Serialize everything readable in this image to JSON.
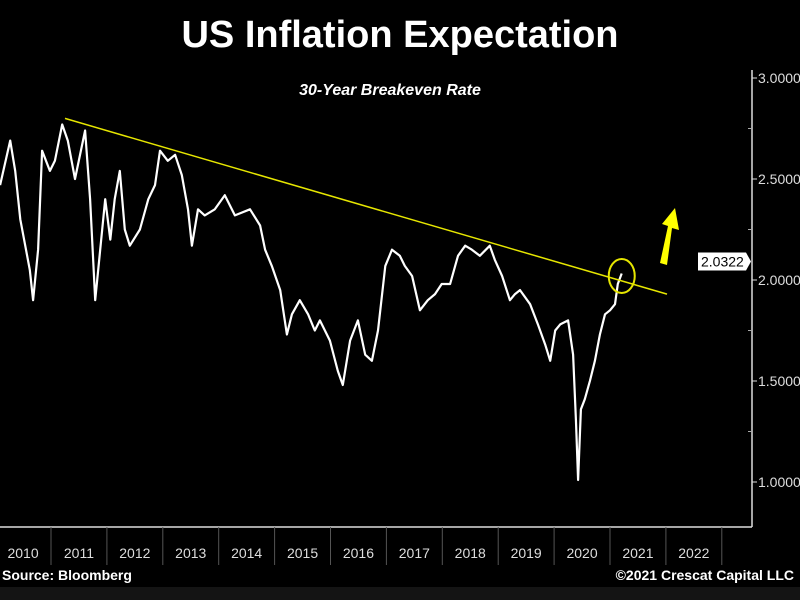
{
  "chart_data": {
    "type": "line",
    "title": "US Inflation Expectation",
    "subtitle": "30-Year Breakeven Rate",
    "x_unit": "year",
    "xlim": [
      2010.09,
      2022.6
    ],
    "ylim": [
      0.78,
      3.04
    ],
    "x_ticks": [
      "2010",
      "2011",
      "2012",
      "2013",
      "2014",
      "2015",
      "2016",
      "2017",
      "2018",
      "2019",
      "2020",
      "2021",
      "2022"
    ],
    "y_ticks": [
      "3.0000",
      "2.5000",
      "2.0000",
      "1.5000",
      "1.0000"
    ],
    "y_tick_values": [
      3.0,
      2.5,
      2.0,
      1.5,
      1.0
    ],
    "y_axis_position": "right",
    "grid": false,
    "last_value_label": "2.0322",
    "series": [
      {
        "color": "#ffffff",
        "x": [
          2010.09,
          2010.27,
          2010.36,
          2010.45,
          2010.62,
          2010.68,
          2010.77,
          2010.84,
          2010.98,
          2011.07,
          2011.2,
          2011.3,
          2011.43,
          2011.61,
          2011.7,
          2011.79,
          2011.88,
          2011.97,
          2012.06,
          2012.14,
          2012.23,
          2012.32,
          2012.41,
          2012.59,
          2012.74,
          2012.86,
          2012.95,
          2013.09,
          2013.22,
          2013.34,
          2013.45,
          2013.52,
          2013.63,
          2013.75,
          2013.93,
          2014.11,
          2014.29,
          2014.56,
          2014.74,
          2014.83,
          2014.95,
          2015.1,
          2015.22,
          2015.31,
          2015.45,
          2015.6,
          2015.72,
          2015.81,
          2015.99,
          2016.13,
          2016.22,
          2016.35,
          2016.49,
          2016.62,
          2016.74,
          2016.85,
          2016.98,
          2017.1,
          2017.24,
          2017.33,
          2017.46,
          2017.6,
          2017.74,
          2017.87,
          2017.99,
          2018.14,
          2018.28,
          2018.41,
          2018.53,
          2018.67,
          2018.85,
          2018.94,
          2019.07,
          2019.21,
          2019.3,
          2019.39,
          2019.57,
          2019.71,
          2019.84,
          2019.93,
          2020.02,
          2020.11,
          2020.25,
          2020.34,
          2020.39,
          2020.43,
          2020.48,
          2020.55,
          2020.64,
          2020.73,
          2020.82,
          2020.91,
          2021.0,
          2021.09,
          2021.14,
          2021.21
        ],
        "y": [
          2.47,
          2.69,
          2.54,
          2.3,
          2.05,
          1.9,
          2.15,
          2.64,
          2.54,
          2.59,
          2.77,
          2.69,
          2.5,
          2.74,
          2.4,
          1.9,
          2.15,
          2.4,
          2.2,
          2.4,
          2.54,
          2.25,
          2.17,
          2.25,
          2.4,
          2.47,
          2.64,
          2.59,
          2.62,
          2.52,
          2.35,
          2.17,
          2.35,
          2.32,
          2.35,
          2.42,
          2.32,
          2.35,
          2.27,
          2.15,
          2.07,
          1.95,
          1.73,
          1.83,
          1.9,
          1.83,
          1.75,
          1.8,
          1.7,
          1.55,
          1.48,
          1.7,
          1.8,
          1.63,
          1.6,
          1.75,
          2.07,
          2.15,
          2.12,
          2.07,
          2.02,
          1.85,
          1.9,
          1.93,
          1.98,
          1.98,
          2.12,
          2.17,
          2.15,
          2.12,
          2.17,
          2.1,
          2.02,
          1.9,
          1.93,
          1.95,
          1.88,
          1.78,
          1.68,
          1.6,
          1.75,
          1.78,
          1.8,
          1.63,
          1.31,
          1.01,
          1.36,
          1.41,
          1.5,
          1.6,
          1.73,
          1.83,
          1.85,
          1.88,
          1.98,
          2.0322
        ]
      }
    ],
    "annotations": {
      "trendline": {
        "color": "#e6e600",
        "from": [
          2011.25,
          2.8
        ],
        "to": [
          2022.02,
          1.93
        ]
      },
      "highlight_circle": {
        "color": "#e6e600",
        "at": [
          2021.21,
          2.03
        ]
      },
      "up_arrow": {
        "color": "#ffff00"
      }
    }
  },
  "footer": {
    "source": "Source: Bloomberg",
    "copyright": "©2021 Crescat Capital LLC"
  }
}
